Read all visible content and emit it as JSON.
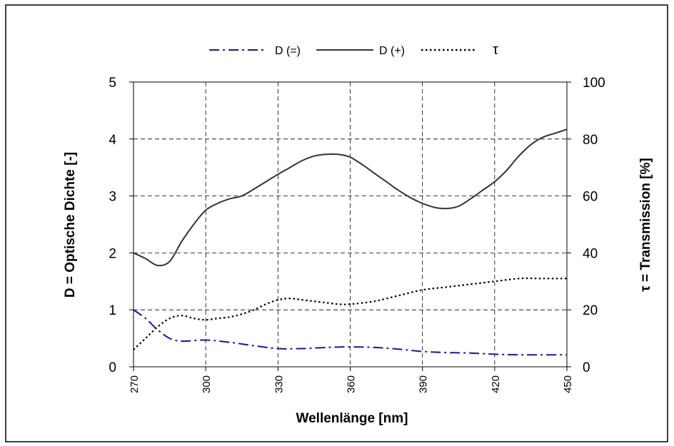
{
  "chart_data": {
    "type": "line",
    "xlabel": "Wellenlänge [nm]",
    "ylabel_left": "D = Optische Dichte [-]",
    "ylabel_right": "τ = Transmission [%]",
    "xlim": [
      270,
      450
    ],
    "ylim_left": [
      0,
      5
    ],
    "ylim_right": [
      0,
      100
    ],
    "x_ticks": [
      270,
      300,
      330,
      360,
      390,
      420,
      450
    ],
    "y_ticks_left": [
      0,
      1,
      2,
      3,
      4,
      5
    ],
    "y_ticks_right": [
      0,
      20,
      40,
      60,
      80,
      100
    ],
    "grid": true,
    "legend_position": "top",
    "series": [
      {
        "name": "D (=)",
        "axis": "left",
        "style": "dash-dot",
        "color": "#1a1a8c",
        "x": [
          270,
          275,
          280,
          285,
          290,
          300,
          310,
          320,
          330,
          340,
          350,
          360,
          370,
          380,
          390,
          400,
          410,
          420,
          430,
          440,
          450
        ],
        "y": [
          1.0,
          0.85,
          0.65,
          0.5,
          0.45,
          0.47,
          0.43,
          0.37,
          0.32,
          0.32,
          0.34,
          0.35,
          0.34,
          0.31,
          0.27,
          0.25,
          0.24,
          0.22,
          0.21,
          0.21,
          0.21
        ]
      },
      {
        "name": "D (+)",
        "axis": "left",
        "style": "solid",
        "color": "#333333",
        "x": [
          270,
          275,
          280,
          285,
          290,
          295,
          300,
          305,
          310,
          315,
          320,
          325,
          330,
          335,
          340,
          345,
          350,
          355,
          360,
          365,
          370,
          375,
          380,
          385,
          390,
          395,
          400,
          405,
          410,
          415,
          420,
          425,
          430,
          435,
          440,
          445,
          450
        ],
        "y": [
          2.0,
          1.9,
          1.78,
          1.85,
          2.2,
          2.5,
          2.75,
          2.87,
          2.95,
          3.0,
          3.12,
          3.25,
          3.38,
          3.5,
          3.62,
          3.7,
          3.73,
          3.73,
          3.68,
          3.55,
          3.4,
          3.25,
          3.1,
          2.97,
          2.87,
          2.8,
          2.78,
          2.82,
          2.95,
          3.1,
          3.25,
          3.45,
          3.7,
          3.9,
          4.03,
          4.1,
          4.17
        ]
      },
      {
        "name": "τ",
        "axis": "right",
        "style": "dotted",
        "color": "#000000",
        "x": [
          270,
          275,
          280,
          285,
          290,
          295,
          300,
          305,
          310,
          315,
          320,
          325,
          330,
          335,
          340,
          345,
          350,
          355,
          360,
          370,
          380,
          390,
          400,
          410,
          420,
          430,
          440,
          450
        ],
        "y": [
          6,
          10,
          14,
          17,
          18,
          17,
          16.5,
          17,
          17.5,
          18.5,
          20,
          22,
          23.5,
          24,
          23.5,
          23,
          22.5,
          22,
          22,
          23,
          25,
          27,
          28,
          29,
          30,
          31,
          31,
          31
        ]
      }
    ]
  }
}
